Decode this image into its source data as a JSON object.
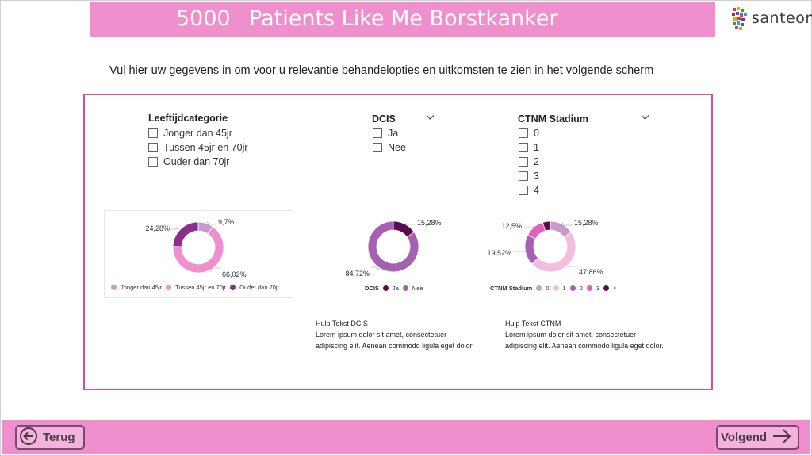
{
  "header": {
    "number": "5000",
    "title": "Patients Like Me Borstkanker",
    "logo_text": "santeon"
  },
  "instruction": "Vul hier uw gegevens in om voor u relevantie behandelopties en uitkomsten te zien in het volgende scherm",
  "slicers": {
    "age": {
      "title": "Leeftijdcategorie",
      "options": [
        "Jonger dan 45jr",
        "Tussen 45jr en 70jr",
        "Ouder dan 70jr"
      ]
    },
    "dcis": {
      "title": "DCIS",
      "options": [
        "Ja",
        "Nee"
      ]
    },
    "ctnm": {
      "title": "CTNM Stadium",
      "options": [
        "0",
        "1",
        "2",
        "3",
        "4"
      ]
    }
  },
  "chart_data": [
    {
      "type": "pie",
      "donut": true,
      "categories": [
        "Jonger dan 45jr",
        "Tussen 45jr en 70jr",
        "Ouder dan 70jr"
      ],
      "values": [
        9.7,
        66.02,
        24.28
      ],
      "value_labels": [
        "9,7%",
        "66,02%",
        "24,28%"
      ],
      "colors": [
        "#c99bcb",
        "#ef8fcd",
        "#8b2f8b"
      ],
      "legend_title": "",
      "legend": "bottom"
    },
    {
      "type": "pie",
      "donut": true,
      "categories": [
        "Ja",
        "Nee"
      ],
      "values": [
        15.28,
        84.72
      ],
      "value_labels": [
        "15,28%",
        "84,72%"
      ],
      "colors": [
        "#5a0a4f",
        "#a660b2"
      ],
      "legend_title": "DCIS",
      "legend": "bottom"
    },
    {
      "type": "pie",
      "donut": true,
      "categories": [
        "0",
        "1",
        "2",
        "3",
        "4"
      ],
      "values": [
        15.28,
        47.86,
        19.52,
        12.5,
        4.84
      ],
      "value_labels": [
        "15,28%",
        "47,86%",
        "19,52%",
        "12,5%",
        ""
      ],
      "colors": [
        "#c99bcb",
        "#f3bde0",
        "#a660b2",
        "#e25fbe",
        "#5a0a4f"
      ],
      "legend_title": "CTNM Stadium",
      "legend": "bottom"
    }
  ],
  "help": {
    "dcis": {
      "title": "Hulp Tekst DCIS",
      "body": "Lorem ipsum dolor sit amet, consectetuer adipiscing elit. Aenean commodo ligula eget dolor."
    },
    "ctnm": {
      "title": "Hulp Tekst CTNM",
      "body": "Lorem ipsum dolor sit amet, consectetuer adipiscing elit. Aenean commodo ligula eget dolor."
    }
  },
  "footer": {
    "back_label": "Terug",
    "next_label": "Volgend"
  }
}
